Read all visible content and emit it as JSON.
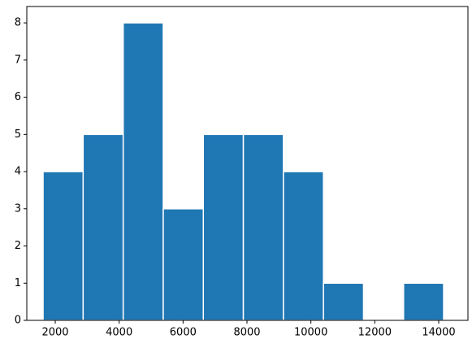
{
  "chart_data": {
    "type": "histogram",
    "bins": [
      1620,
      2873,
      4127,
      5380,
      6634,
      7887,
      9140,
      10394,
      11647,
      12901,
      14154
    ],
    "values": [
      4,
      5,
      8,
      3,
      5,
      5,
      4,
      1,
      0,
      1
    ],
    "color": "#1f77b4",
    "xlim": [
      1110,
      14915
    ],
    "xticks": [
      2000,
      4000,
      6000,
      8000,
      10000,
      12000,
      14000
    ],
    "ylim": [
      0,
      8.44
    ],
    "yticks": [
      0,
      1,
      2,
      3,
      4,
      5,
      6,
      7,
      8
    ],
    "grid": false
  }
}
